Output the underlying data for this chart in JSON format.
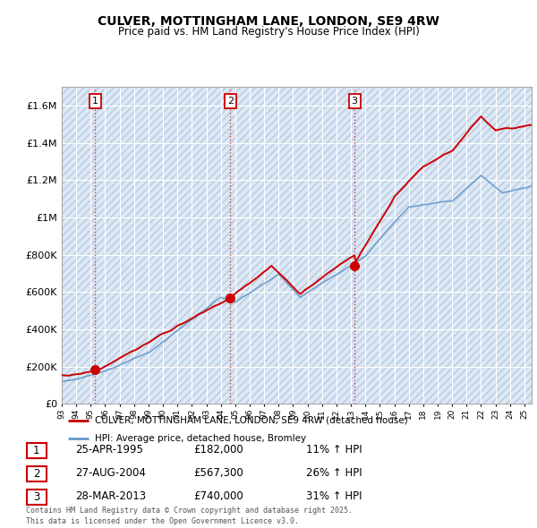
{
  "title": "CULVER, MOTTINGHAM LANE, LONDON, SE9 4RW",
  "subtitle": "Price paid vs. HM Land Registry's House Price Index (HPI)",
  "legend_label_red": "CULVER, MOTTINGHAM LANE, LONDON, SE9 4RW (detached house)",
  "legend_label_blue": "HPI: Average price, detached house, Bromley",
  "footer": "Contains HM Land Registry data © Crown copyright and database right 2025.\nThis data is licensed under the Open Government Licence v3.0.",
  "transactions": [
    {
      "num": 1,
      "date": "25-APR-1995",
      "price": "£182,000",
      "hpi": "11% ↑ HPI",
      "year": 1995.32
    },
    {
      "num": 2,
      "date": "27-AUG-2004",
      "price": "£567,300",
      "hpi": "26% ↑ HPI",
      "year": 2004.66
    },
    {
      "num": 3,
      "date": "28-MAR-2013",
      "price": "£740,000",
      "hpi": "31% ↑ HPI",
      "year": 2013.25
    }
  ],
  "transaction_values": [
    182000,
    567300,
    740000
  ],
  "ylim": [
    0,
    1700000
  ],
  "yticks": [
    0,
    200000,
    400000,
    600000,
    800000,
    1000000,
    1200000,
    1400000,
    1600000
  ],
  "ytick_labels": [
    "£0",
    "£200K",
    "£400K",
    "£600K",
    "£800K",
    "£1M",
    "£1.2M",
    "£1.4M",
    "£1.6M"
  ],
  "xmin": 1993,
  "xmax": 2025.5,
  "background_color": "#ffffff",
  "plot_bg_color": "#dce8f5",
  "hatch_color": "#b8c8dc",
  "grid_color": "#ffffff",
  "red_color": "#cc0000",
  "blue_color": "#6699cc"
}
